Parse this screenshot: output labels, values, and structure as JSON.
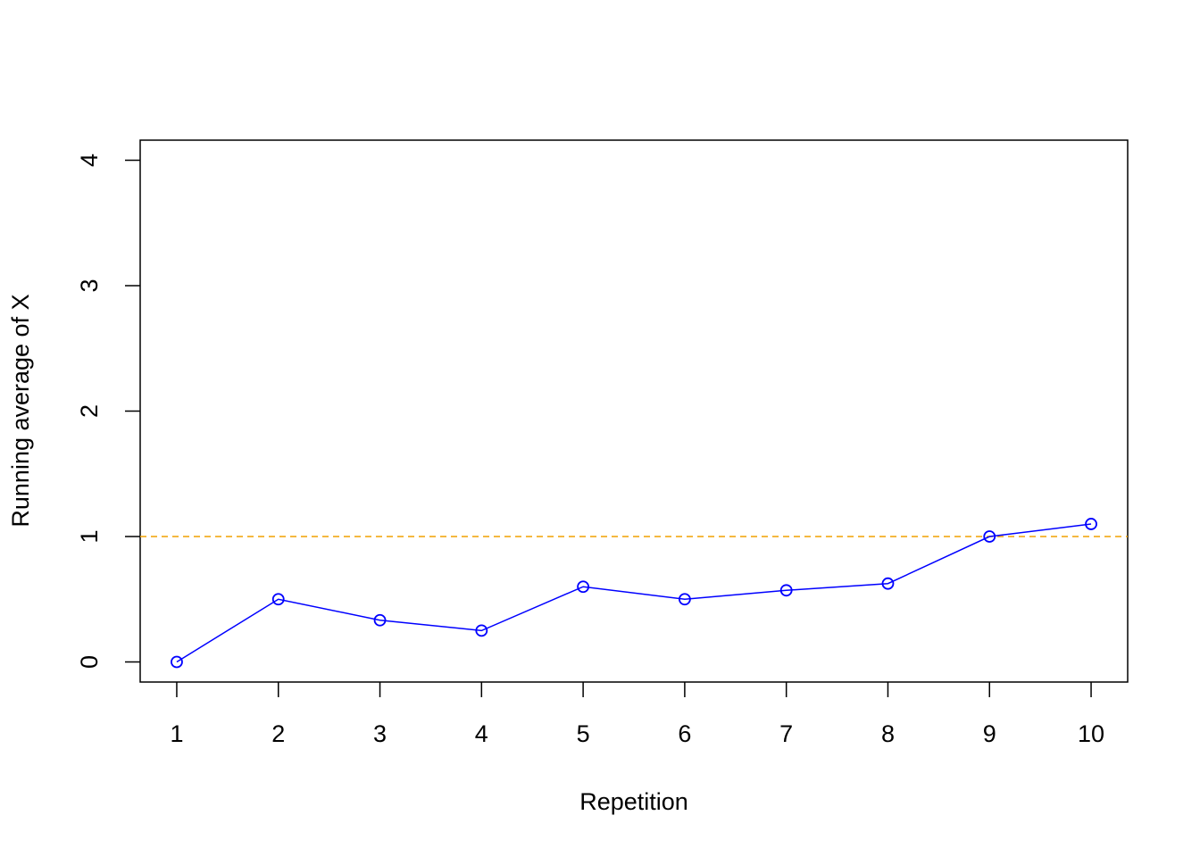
{
  "chart_data": {
    "type": "line",
    "x_label": "Repetition",
    "y_label": "Running average of X",
    "series": [
      {
        "name": "Running average",
        "color": "#0000ff",
        "x": [
          1,
          2,
          3,
          4,
          5,
          6,
          7,
          8,
          9,
          10
        ],
        "values": [
          0,
          0.5,
          0.333,
          0.25,
          0.6,
          0.5,
          0.571,
          0.625,
          1.0,
          1.1
        ]
      }
    ],
    "xlim": [
      0.64,
      10.36
    ],
    "xticks": [
      1,
      2,
      3,
      4,
      5,
      6,
      7,
      8,
      9,
      10
    ],
    "ylim": [
      -0.16,
      4.16
    ],
    "yticks": [
      0,
      1,
      2,
      3,
      4
    ],
    "hline": {
      "value": 1,
      "color": "#f0a000"
    },
    "grid": false,
    "markers": "open-circle"
  }
}
